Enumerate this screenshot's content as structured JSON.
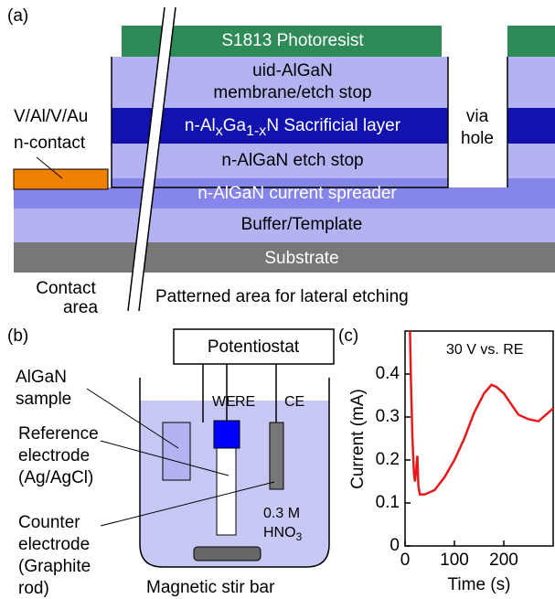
{
  "panel_a": {
    "label": "(a)",
    "layers": {
      "photoresist": "S1813 Photoresist",
      "membrane": [
        "uid-AlGaN",
        "membrane/etch stop"
      ],
      "sacrificial": [
        "n-Al",
        "x",
        "Ga",
        "1-x",
        "N Sacrificial layer"
      ],
      "etch_stop": "n-AlGaN etch stop",
      "spreader": "n-AlGaN current spreader",
      "buffer": "Buffer/Template",
      "substrate": "Substrate"
    },
    "contact_label": [
      "V/Al/V/Au",
      "n-contact"
    ],
    "via_label": [
      "via",
      "hole"
    ],
    "contact_area": [
      "Contact",
      "area"
    ],
    "patterned_area": "Patterned area for lateral etching"
  },
  "panel_b": {
    "label": "(b)",
    "potentiostat": "Potentiostat",
    "electrodes": [
      "WE",
      "RE",
      "CE"
    ],
    "sample": [
      "AlGaN",
      "sample"
    ],
    "reference": [
      "Reference",
      "electrode",
      "(Ag/AgCl)"
    ],
    "counter": [
      "Counter",
      "electrode",
      "(Graphite",
      "rod)"
    ],
    "electrolyte": [
      "0.3 M",
      "HNO",
      "3"
    ],
    "stir_bar": "Magnetic stir bar"
  },
  "chart_data": {
    "type": "line",
    "panel_label": "(c)",
    "annotation": "30 V vs. RE",
    "x_label": "Time (s)",
    "y_label": "Current (mA)",
    "xlim": [
      0,
      300
    ],
    "xticks": [
      0,
      100,
      200
    ],
    "ylim": [
      0,
      0.5
    ],
    "yticks": [
      0,
      0.1,
      0.2,
      0.3,
      0.4
    ],
    "series": [
      {
        "color": "#e8191c",
        "x": [
          10,
          12,
          15,
          18,
          20,
          22,
          25,
          27,
          30,
          40,
          50,
          60,
          80,
          100,
          120,
          140,
          160,
          175,
          185,
          200,
          215,
          230,
          250,
          270,
          285,
          300
        ],
        "values": [
          0.5,
          0.38,
          0.25,
          0.17,
          0.15,
          0.17,
          0.21,
          0.14,
          0.12,
          0.12,
          0.125,
          0.13,
          0.16,
          0.2,
          0.25,
          0.31,
          0.355,
          0.375,
          0.37,
          0.355,
          0.33,
          0.305,
          0.295,
          0.29,
          0.305,
          0.32
        ]
      }
    ]
  }
}
